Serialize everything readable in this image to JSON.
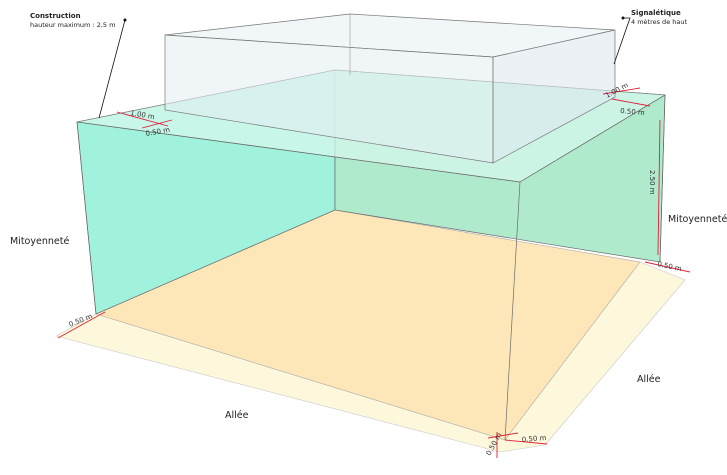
{
  "annotations": {
    "construction_title": "Construction",
    "construction_sub": "hauteur maximum : 2,5 m",
    "signal_title": "Signalétique",
    "signal_sub": "4 mètres de haut"
  },
  "labels": {
    "mitoyennete_left": "Mitoyenneté",
    "mitoyennete_right": "Mitoyenneté",
    "allee_front": "Allée",
    "allee_right": "Allée"
  },
  "dimensions": {
    "top_left_1m": "1.00 m",
    "top_left_05m": "0.50 m",
    "top_right_1m": "1.00 m",
    "top_right_05m": "0.50 m",
    "height_25m": "2.50 m",
    "right_05m": "0.50 m",
    "front_left_05m": "0.50 m",
    "front_corner_05m": "0.50 m",
    "bottom_05m": "0.50 m"
  },
  "colors": {
    "wall": "#8ff0d6",
    "floor": "#fde7b8",
    "margin": "#fdf8dc",
    "box": "#e9f1f5",
    "dimension": "#e0203a"
  }
}
